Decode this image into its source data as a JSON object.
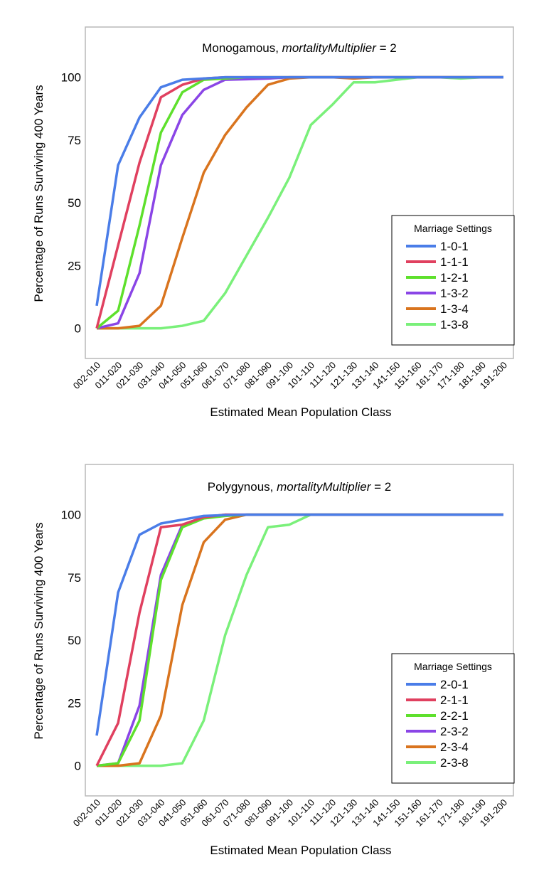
{
  "chart_data": [
    {
      "type": "line",
      "title_prefix": "Monogamous, ",
      "title_italic": "mortalityMultiplier",
      "title_suffix": " = 2",
      "xlabel": "Estimated Mean Population Class",
      "ylabel": "Percentage of Runs Surviving 400 Years",
      "yticks": [
        0,
        25,
        50,
        75,
        100
      ],
      "ylim": [
        -12,
        120
      ],
      "categories": [
        "002-010",
        "011-020",
        "021-030",
        "031-040",
        "041-050",
        "051-060",
        "061-070",
        "071-080",
        "081-090",
        "091-100",
        "101-110",
        "111-120",
        "121-130",
        "131-140",
        "141-150",
        "151-160",
        "161-170",
        "171-180",
        "181-190",
        "191-200"
      ],
      "legend": {
        "title": "Marriage Settings",
        "placement": "right"
      },
      "series": [
        {
          "name": "1-0-1",
          "color": "#4a7de8",
          "values": [
            9,
            65,
            84,
            96,
            99,
            99.5,
            100,
            100,
            100,
            100,
            100,
            100,
            100,
            100,
            100,
            100,
            100,
            100,
            100,
            100
          ]
        },
        {
          "name": "1-1-1",
          "color": "#e0405f",
          "values": [
            0,
            33,
            66,
            92,
            97,
            99.5,
            100,
            100,
            100,
            100,
            100,
            100,
            100,
            100,
            100,
            100,
            100,
            100,
            100,
            100
          ]
        },
        {
          "name": "1-2-1",
          "color": "#5ee02c",
          "values": [
            0,
            7,
            41,
            78,
            94,
            99,
            99.5,
            100,
            100,
            100,
            100,
            100,
            100,
            100,
            100,
            100,
            100,
            100,
            100,
            100
          ]
        },
        {
          "name": "1-3-2",
          "color": "#8a45e6",
          "values": [
            0,
            2,
            22,
            65,
            85,
            95,
            99,
            99.2,
            99.5,
            100,
            100,
            100,
            100,
            100,
            100,
            100,
            100,
            100,
            100,
            100
          ]
        },
        {
          "name": "1-3-4",
          "color": "#d9741e",
          "values": [
            0,
            0,
            1,
            9,
            36,
            62,
            77,
            88,
            97,
            99.5,
            100,
            100,
            99.5,
            100,
            100,
            100,
            100,
            100,
            100,
            100
          ]
        },
        {
          "name": "1-3-8",
          "color": "#7af07a",
          "values": [
            0,
            0,
            0,
            0,
            1,
            3,
            14,
            29,
            44,
            60,
            81,
            89,
            98,
            98,
            99,
            100,
            100,
            99.5,
            100,
            100
          ]
        }
      ]
    },
    {
      "type": "line",
      "title_prefix": "Polygynous, ",
      "title_italic": "mortalityMultiplier",
      "title_suffix": " = 2",
      "xlabel": "Estimated Mean Population Class",
      "ylabel": "Percentage of Runs Surviving 400 Years",
      "yticks": [
        0,
        25,
        50,
        75,
        100
      ],
      "ylim": [
        -12,
        120
      ],
      "categories": [
        "002-010",
        "011-020",
        "021-030",
        "031-040",
        "041-050",
        "051-060",
        "061-070",
        "071-080",
        "081-090",
        "091-100",
        "101-110",
        "111-120",
        "121-130",
        "131-140",
        "141-150",
        "151-160",
        "161-170",
        "171-180",
        "181-190",
        "191-200"
      ],
      "legend": {
        "title": "Marriage Settings",
        "placement": "right"
      },
      "series": [
        {
          "name": "2-0-1",
          "color": "#4a7de8",
          "values": [
            12,
            69,
            92,
            96.5,
            98,
            99.5,
            99.8,
            100,
            100,
            100,
            100,
            100,
            100,
            100,
            100,
            100,
            100,
            100,
            100,
            100
          ]
        },
        {
          "name": "2-1-1",
          "color": "#e0405f",
          "values": [
            0,
            17,
            61,
            95,
            96,
            99,
            100,
            100,
            100,
            100,
            100,
            100,
            100,
            100,
            100,
            100,
            100,
            100,
            100,
            100
          ]
        },
        {
          "name": "2-2-1",
          "color": "#5ee02c",
          "values": [
            0,
            1,
            18,
            74,
            95,
            98.5,
            99.5,
            100,
            100,
            100,
            100,
            100,
            100,
            100,
            100,
            100,
            100,
            100,
            100,
            100
          ]
        },
        {
          "name": "2-3-2",
          "color": "#8a45e6",
          "values": [
            0,
            1,
            24,
            76,
            96,
            99,
            100,
            100,
            100,
            100,
            100,
            100,
            100,
            100,
            100,
            100,
            100,
            100,
            100,
            100
          ]
        },
        {
          "name": "2-3-4",
          "color": "#d9741e",
          "values": [
            0,
            0,
            1,
            20,
            64,
            89,
            98,
            100,
            100,
            100,
            100,
            100,
            100,
            100,
            100,
            100,
            100,
            100,
            100,
            100
          ]
        },
        {
          "name": "2-3-8",
          "color": "#7af07a",
          "values": [
            0,
            0,
            0,
            0,
            1,
            18,
            52,
            76,
            95,
            96,
            100,
            100,
            100,
            100,
            100,
            100,
            100,
            100,
            100,
            100
          ]
        }
      ]
    }
  ]
}
